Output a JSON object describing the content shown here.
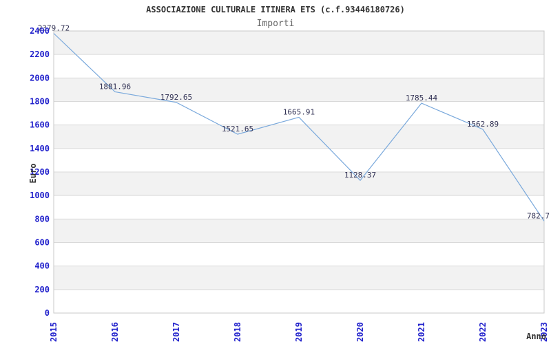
{
  "header": {
    "title": "ASSOCIAZIONE CULTURALE ITINERA ETS (c.f.93446180726)",
    "subtitle": "Importi"
  },
  "colors": {
    "line": "#7aa9dc",
    "tick_label": "#2222cc",
    "data_label": "#333355",
    "band_gray": "#f2f2f2",
    "band_white": "#ffffff",
    "grid": "#d9d9d9",
    "plot_border": "#c8c8c8",
    "title": "#333333",
    "subtitle": "#666666",
    "axis_title": "#333333"
  },
  "chart_data": {
    "type": "line",
    "title": "ASSOCIAZIONE CULTURALE ITINERA ETS (c.f.93446180726)",
    "subtitle": "Importi",
    "xlabel": "Anno",
    "ylabel": "Euro",
    "categories": [
      "2015",
      "2016",
      "2017",
      "2018",
      "2019",
      "2020",
      "2021",
      "2022",
      "2023"
    ],
    "values": [
      2379.72,
      1881.96,
      1792.65,
      1521.65,
      1665.91,
      1128.37,
      1785.44,
      1562.89,
      782.7
    ],
    "data_labels": [
      "2379.72",
      "1881.96",
      "1792.65",
      "1521.65",
      "1665.91",
      "1128.37",
      "1785.44",
      "1562.89",
      "782.7"
    ],
    "ylim": [
      0,
      2400
    ],
    "ytick_interval": 200,
    "ytick_labels": [
      "0",
      "200",
      "400",
      "600",
      "800",
      "1000",
      "1200",
      "1400",
      "1600",
      "1800",
      "2000",
      "2200",
      "2400"
    ],
    "grid": true,
    "alternating_bands": true,
    "legend": "none",
    "x_labels_rotated_degrees": 90
  }
}
